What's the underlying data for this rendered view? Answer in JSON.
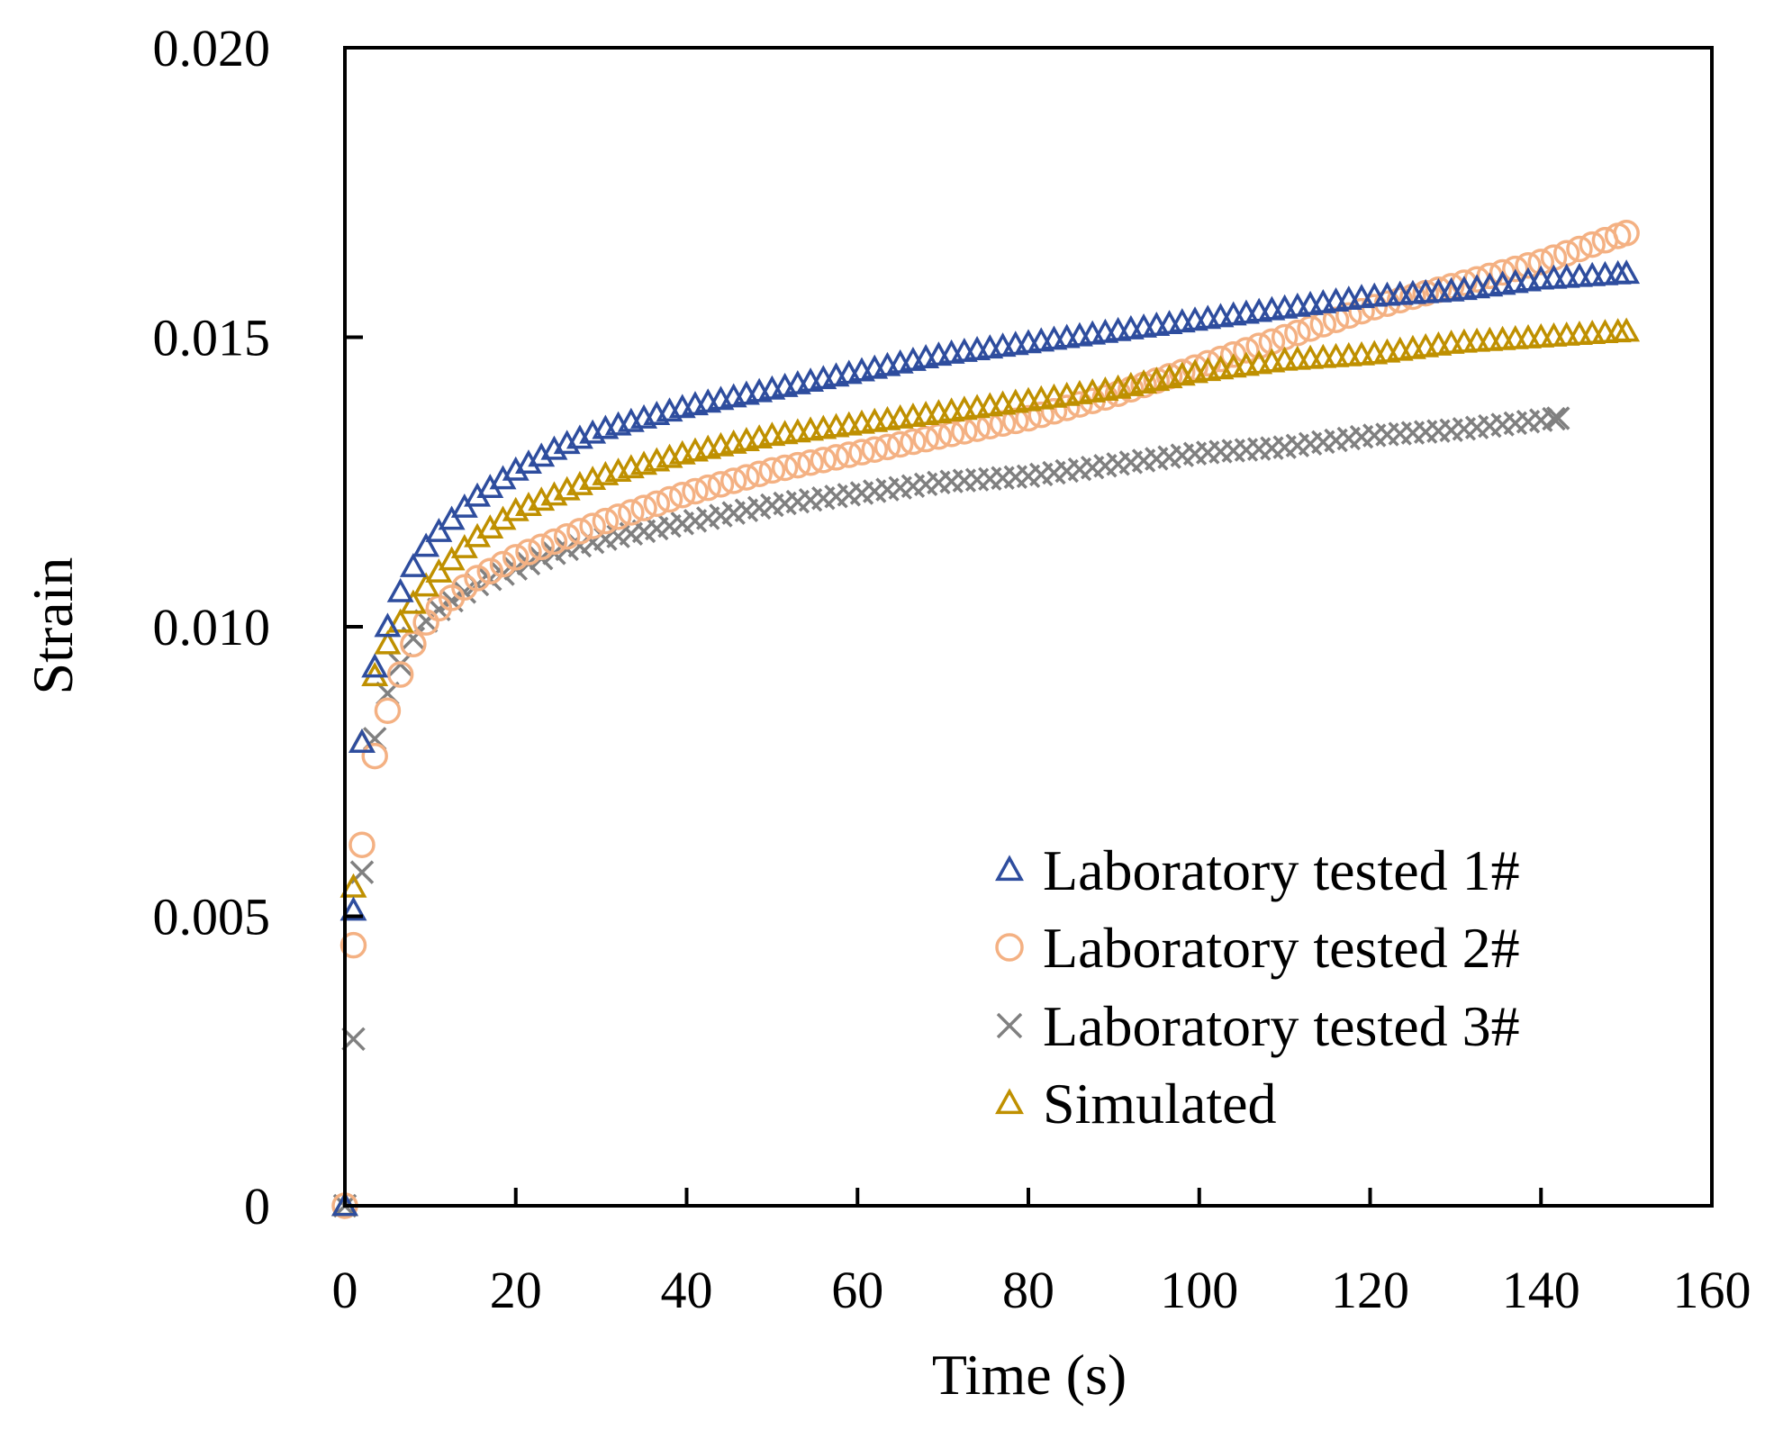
{
  "chart_data": {
    "type": "scatter",
    "title": "",
    "xlabel": "Time (s)",
    "ylabel": "Strain",
    "xlim": [
      0,
      160
    ],
    "ylim": [
      0,
      0.02
    ],
    "xticks": [
      "0",
      "20",
      "40",
      "60",
      "80",
      "100",
      "120",
      "140",
      "160"
    ],
    "yticks": [
      "0",
      "0.005",
      "0.010",
      "0.015",
      "0.020"
    ],
    "grid": false,
    "legend_position": "bottom-right",
    "series": [
      {
        "name": "Laboratory tested 1#",
        "marker": "triangle",
        "color": "#2E4D9E",
        "x": [
          0,
          1,
          2,
          3,
          4,
          5,
          7,
          10,
          15,
          20,
          25,
          30,
          40,
          50,
          60,
          70,
          80,
          90,
          100,
          110,
          120,
          130,
          140,
          150
        ],
        "y": [
          0,
          0.0051,
          0.008,
          0.009,
          0.0096,
          0.01,
          0.0108,
          0.0115,
          0.0122,
          0.0127,
          0.0131,
          0.0134,
          0.0138,
          0.0141,
          0.0144,
          0.0147,
          0.0149,
          0.0151,
          0.0153,
          0.0155,
          0.0157,
          0.0158,
          0.016,
          0.0161
        ]
      },
      {
        "name": "Laboratory tested 2#",
        "marker": "circle",
        "color": "#F4B183",
        "x": [
          0,
          1,
          2.5,
          4,
          6,
          8,
          10,
          15,
          20,
          25,
          30,
          40,
          50,
          60,
          70,
          80,
          90,
          100,
          110,
          120,
          130,
          140,
          150
        ],
        "y": [
          0,
          0.0045,
          0.0071,
          0.0081,
          0.009,
          0.0097,
          0.0102,
          0.0108,
          0.0112,
          0.0115,
          0.0118,
          0.0123,
          0.0127,
          0.013,
          0.0133,
          0.0136,
          0.014,
          0.0145,
          0.015,
          0.0155,
          0.0159,
          0.0163,
          0.0168
        ]
      },
      {
        "name": "Laboratory tested 3#",
        "marker": "x",
        "color": "#808080",
        "x": [
          0,
          2.5,
          4,
          6,
          8,
          10,
          15,
          20,
          25,
          30,
          40,
          50,
          60,
          70,
          80,
          90,
          100,
          110,
          120,
          130,
          142
        ],
        "y": [
          0,
          0.0072,
          0.0085,
          0.0092,
          0.0098,
          0.0102,
          0.0107,
          0.011,
          0.0113,
          0.0115,
          0.0118,
          0.0121,
          0.0123,
          0.0125,
          0.0126,
          0.0128,
          0.013,
          0.0131,
          0.0133,
          0.0134,
          0.0136
        ]
      },
      {
        "name": "Simulated",
        "marker": "triangle",
        "color": "#BF9000",
        "x": [
          0,
          1,
          2,
          3,
          4,
          5,
          7,
          10,
          15,
          20,
          25,
          30,
          40,
          50,
          60,
          70,
          80,
          90,
          100,
          110,
          120,
          130,
          140,
          150
        ],
        "y": [
          0,
          0.0055,
          0.008,
          0.0089,
          0.0094,
          0.0097,
          0.0102,
          0.0108,
          0.0115,
          0.012,
          0.0123,
          0.0126,
          0.013,
          0.0133,
          0.0135,
          0.0137,
          0.0139,
          0.0141,
          0.0144,
          0.0146,
          0.0147,
          0.0149,
          0.015,
          0.0151
        ]
      }
    ]
  }
}
